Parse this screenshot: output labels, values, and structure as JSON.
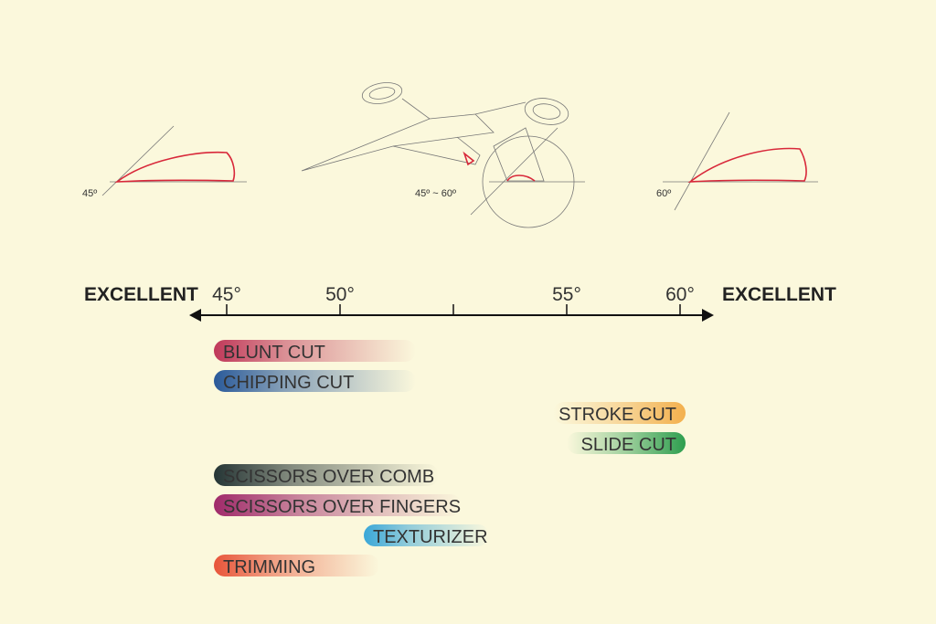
{
  "diagrams": [
    {
      "label": "45º"
    },
    {
      "label": "45º ~ 60º"
    },
    {
      "label": "60º"
    }
  ],
  "scale": {
    "left_label": "EXCELLENT",
    "right_label": "EXCELLENT",
    "ticks": [
      "45°",
      "50°",
      "55°",
      "60°"
    ]
  },
  "cuts": [
    {
      "label": "BLUNT CUT"
    },
    {
      "label": "CHIPPING CUT"
    },
    {
      "label": "STROKE CUT"
    },
    {
      "label": "SLIDE CUT"
    },
    {
      "label": "SCISSORS OVER COMB"
    },
    {
      "label": "SCISSORS OVER FINGERS"
    },
    {
      "label": "TEXTURIZER"
    },
    {
      "label": "TRIMMING"
    }
  ]
}
